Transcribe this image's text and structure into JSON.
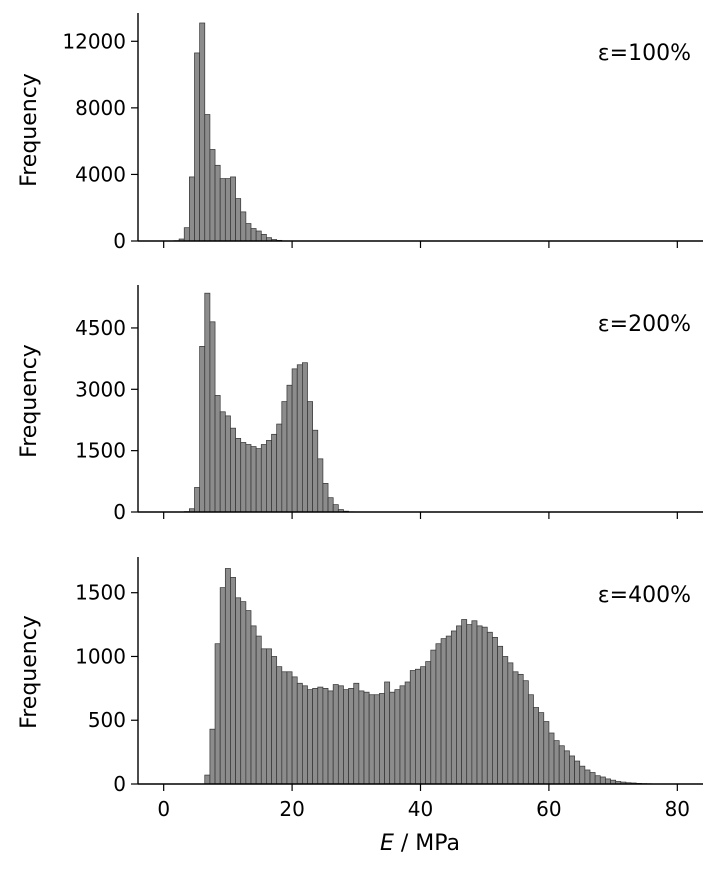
{
  "figure": {
    "xlabel_var": "E",
    "xlabel_unit": " / MPa"
  },
  "chart_data": [
    {
      "type": "bar",
      "label": "ε=100%",
      "ylabel": "Frequency",
      "ylim": [
        0,
        13700
      ],
      "yticks": [
        0,
        4000,
        8000,
        12000
      ],
      "xlim": [
        -4,
        84
      ],
      "xticks": [
        0,
        20,
        40,
        60,
        80
      ],
      "bin_width": 0.8,
      "x": [
        1.6,
        2.4,
        3.2,
        4.0,
        4.8,
        5.6,
        6.4,
        7.2,
        8.0,
        8.8,
        9.6,
        10.4,
        11.2,
        12.0,
        12.8,
        13.6,
        14.4,
        15.2,
        16.0,
        16.8,
        17.6,
        18.4
      ],
      "values": [
        20,
        120,
        800,
        3850,
        11300,
        13100,
        7600,
        5500,
        4550,
        3750,
        3750,
        3850,
        2550,
        1750,
        1050,
        750,
        600,
        400,
        200,
        90,
        40,
        10
      ]
    },
    {
      "type": "bar",
      "label": "ε=200%",
      "ylabel": "Frequency",
      "ylim": [
        0,
        5550
      ],
      "yticks": [
        0,
        1500,
        3000,
        4500
      ],
      "xlim": [
        -4,
        84
      ],
      "xticks": [
        0,
        20,
        40,
        60,
        80
      ],
      "bin_width": 0.8,
      "x": [
        3.2,
        4.0,
        4.8,
        5.6,
        6.4,
        7.2,
        8.0,
        8.8,
        9.6,
        10.4,
        11.2,
        12.0,
        12.8,
        13.6,
        14.4,
        15.2,
        16.0,
        16.8,
        17.6,
        18.4,
        19.2,
        20.0,
        20.8,
        21.6,
        22.4,
        23.2,
        24.0,
        24.8,
        25.6,
        26.4,
        27.2,
        28.0,
        28.8
      ],
      "values": [
        10,
        80,
        600,
        4050,
        5350,
        4650,
        2850,
        2450,
        2350,
        2050,
        1800,
        1700,
        1650,
        1600,
        1550,
        1650,
        1750,
        1900,
        2150,
        2700,
        3100,
        3500,
        3600,
        3650,
        2700,
        2000,
        1300,
        700,
        350,
        180,
        60,
        20,
        5
      ]
    },
    {
      "type": "bar",
      "label": "ε=400%",
      "ylabel": "Frequency",
      "ylim": [
        0,
        1780
      ],
      "yticks": [
        0,
        500,
        1000,
        1500
      ],
      "xlim": [
        -4,
        84
      ],
      "xticks": [
        0,
        20,
        40,
        60,
        80
      ],
      "bin_width": 0.8,
      "x": [
        6.4,
        7.2,
        8.0,
        8.8,
        9.6,
        10.4,
        11.2,
        12.0,
        12.8,
        13.6,
        14.4,
        15.2,
        16.0,
        16.8,
        17.6,
        18.4,
        19.2,
        20.0,
        20.8,
        21.6,
        22.4,
        23.2,
        24.0,
        24.8,
        25.6,
        26.4,
        27.2,
        28.0,
        28.8,
        29.6,
        30.4,
        31.2,
        32.0,
        32.8,
        33.6,
        34.4,
        35.2,
        36.0,
        36.8,
        37.6,
        38.4,
        39.2,
        40.0,
        40.8,
        41.6,
        42.4,
        43.2,
        44.0,
        44.8,
        45.6,
        46.4,
        47.2,
        48.0,
        48.8,
        49.6,
        50.4,
        51.2,
        52.0,
        52.8,
        53.6,
        54.4,
        55.2,
        56.0,
        56.8,
        57.6,
        58.4,
        59.2,
        60.0,
        60.8,
        61.6,
        62.4,
        63.2,
        64.0,
        64.8,
        65.6,
        66.4,
        67.2,
        68.0,
        68.8,
        69.6,
        70.4,
        71.2,
        72.0,
        72.8,
        73.6,
        74.4,
        75.2,
        76.0
      ],
      "values": [
        70,
        430,
        1100,
        1540,
        1690,
        1620,
        1460,
        1430,
        1360,
        1240,
        1160,
        1060,
        1060,
        1000,
        920,
        880,
        880,
        840,
        790,
        770,
        740,
        750,
        760,
        750,
        730,
        780,
        770,
        740,
        750,
        790,
        730,
        720,
        700,
        700,
        710,
        800,
        720,
        740,
        770,
        800,
        890,
        900,
        920,
        960,
        1050,
        1100,
        1140,
        1160,
        1200,
        1240,
        1290,
        1250,
        1280,
        1240,
        1230,
        1190,
        1150,
        1080,
        1000,
        950,
        880,
        860,
        810,
        700,
        600,
        560,
        490,
        400,
        340,
        300,
        260,
        220,
        180,
        140,
        110,
        90,
        65,
        55,
        40,
        30,
        20,
        15,
        10,
        8,
        5,
        3,
        2,
        1
      ]
    }
  ]
}
